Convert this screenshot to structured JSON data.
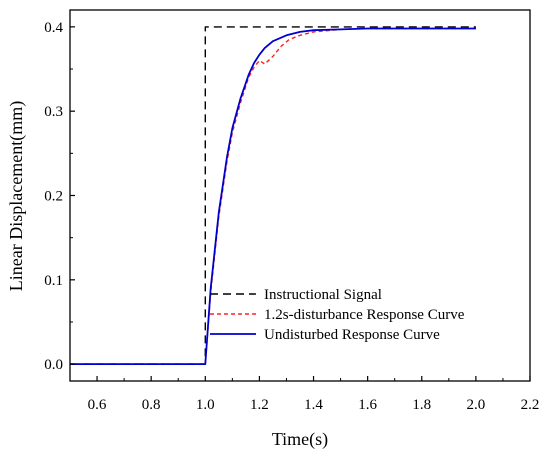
{
  "chart_data": {
    "type": "line",
    "title": "",
    "xlabel": "Time(s)",
    "ylabel": "Linear Displacement(mm)",
    "xlim": [
      0.5,
      2.2
    ],
    "ylim": [
      -0.02,
      0.42
    ],
    "xticks": [
      "0.6",
      "0.8",
      "1.0",
      "1.2",
      "1.4",
      "1.6",
      "1.8",
      "2.0",
      "2.2"
    ],
    "yticks": [
      "0.0",
      "0.1",
      "0.2",
      "0.3",
      "0.4"
    ],
    "grid": false,
    "legend_position": "bottom-right",
    "series": [
      {
        "name": "Instructional Signal",
        "color": "#000000",
        "style": "dashed",
        "x": [
          0.5,
          1.0,
          1.0,
          2.0
        ],
        "y": [
          0.0,
          0.0,
          0.4,
          0.4
        ]
      },
      {
        "name": "1.2s-disturbance Response Curve",
        "color": "#ff2020",
        "style": "dotted",
        "x": [
          0.5,
          1.0,
          1.02,
          1.05,
          1.08,
          1.1,
          1.13,
          1.16,
          1.18,
          1.2,
          1.22,
          1.25,
          1.28,
          1.31,
          1.35,
          1.4,
          1.5,
          1.6,
          1.8,
          2.0
        ],
        "y": [
          0.0,
          0.0,
          0.085,
          0.175,
          0.24,
          0.275,
          0.31,
          0.34,
          0.352,
          0.36,
          0.356,
          0.365,
          0.377,
          0.385,
          0.39,
          0.394,
          0.397,
          0.398,
          0.398,
          0.398
        ]
      },
      {
        "name": "Undisturbed Response Curve",
        "color": "#0000cc",
        "style": "solid",
        "x": [
          0.5,
          1.0,
          1.02,
          1.05,
          1.08,
          1.1,
          1.13,
          1.16,
          1.18,
          1.2,
          1.22,
          1.25,
          1.3,
          1.35,
          1.4,
          1.5,
          1.6,
          1.8,
          2.0
        ],
        "y": [
          0.0,
          0.0,
          0.09,
          0.18,
          0.245,
          0.28,
          0.315,
          0.343,
          0.357,
          0.367,
          0.375,
          0.383,
          0.39,
          0.394,
          0.396,
          0.397,
          0.398,
          0.398,
          0.398
        ]
      }
    ]
  }
}
